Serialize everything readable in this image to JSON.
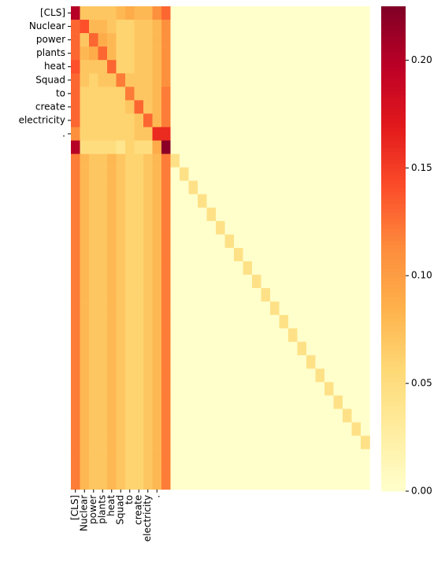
{
  "chart_data": {
    "type": "heatmap",
    "title": "",
    "xlabel": "",
    "ylabel": "",
    "grid": false,
    "n_rows": 36,
    "n_cols": 33,
    "row_tick_labels": [
      "[CLS]",
      "Nuclear",
      "power",
      "plants",
      "heat",
      "Squad",
      "to",
      "create",
      "electricity",
      "."
    ],
    "col_tick_labels": [
      "[CLS]",
      "Nuclear",
      "power",
      "plants",
      "heat",
      "Squad",
      "to",
      "create",
      "electricity",
      "."
    ],
    "value_range": [
      0,
      0.225
    ],
    "colormap": "YlOrRd",
    "colorbar_ticks": [
      "0.00",
      "0.05",
      "0.10",
      "0.15",
      "0.20"
    ],
    "colorbar_tick_values": [
      0,
      0.05,
      0.1,
      0.15,
      0.2
    ],
    "token_rows": [
      [
        0.2,
        0.07,
        0.07,
        0.07,
        0.07,
        0.08,
        0.09,
        0.08,
        0.08,
        0.11,
        0.13
      ],
      [
        0.13,
        0.14,
        0.08,
        0.08,
        0.07,
        0.06,
        0.06,
        0.07,
        0.07,
        0.08,
        0.11
      ],
      [
        0.13,
        0.07,
        0.13,
        0.09,
        0.08,
        0.06,
        0.06,
        0.07,
        0.07,
        0.08,
        0.11
      ],
      [
        0.13,
        0.08,
        0.09,
        0.13,
        0.08,
        0.06,
        0.06,
        0.07,
        0.07,
        0.08,
        0.11
      ],
      [
        0.14,
        0.07,
        0.07,
        0.07,
        0.13,
        0.06,
        0.06,
        0.07,
        0.07,
        0.08,
        0.11
      ],
      [
        0.13,
        0.07,
        0.06,
        0.07,
        0.07,
        0.12,
        0.07,
        0.07,
        0.07,
        0.08,
        0.11
      ],
      [
        0.13,
        0.06,
        0.06,
        0.06,
        0.06,
        0.06,
        0.12,
        0.07,
        0.07,
        0.08,
        0.12
      ],
      [
        0.13,
        0.06,
        0.06,
        0.06,
        0.06,
        0.06,
        0.07,
        0.13,
        0.07,
        0.08,
        0.12
      ],
      [
        0.13,
        0.06,
        0.06,
        0.06,
        0.06,
        0.06,
        0.06,
        0.07,
        0.13,
        0.08,
        0.12
      ],
      [
        0.11,
        0.06,
        0.06,
        0.06,
        0.06,
        0.06,
        0.06,
        0.07,
        0.07,
        0.16,
        0.16
      ],
      [
        0.2,
        0.05,
        0.05,
        0.05,
        0.05,
        0.04,
        0.06,
        0.05,
        0.05,
        0.09,
        0.22
      ]
    ],
    "pad_block": {
      "first_col_avg": 0.12,
      "mid_cols_avg": [
        0.08,
        0.07,
        0.07,
        0.08,
        0.07,
        0.06,
        0.06,
        0.07,
        0.08
      ],
      "last_token_col_avg": 0.12,
      "diagonal_value": 0.045,
      "other_value": 0.0
    }
  }
}
